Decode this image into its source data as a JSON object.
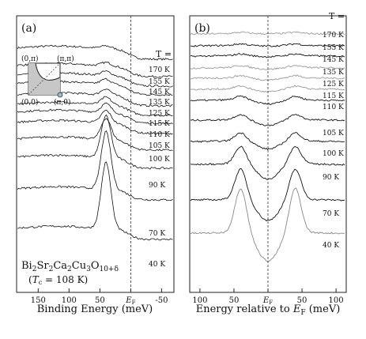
{
  "chart_data": [
    {
      "type": "line",
      "panel_label": "(a)",
      "xlabel": "Binding Energy (meV)",
      "x_ticks": [
        "150",
        "100",
        "50",
        "E_F",
        "-50"
      ],
      "x_tick_values": [
        150,
        100,
        50,
        0,
        -50
      ],
      "xlim": [
        185,
        -70
      ],
      "x_reversed": true,
      "temp_header": "T =",
      "fermi_line": "dashed vertical line at E_F",
      "series": [
        {
          "name": "170 K",
          "kind": "gap",
          "peak_x": 40,
          "peak_height": 0.12
        },
        {
          "name": "155 K",
          "kind": "gap",
          "peak_x": 40,
          "peak_height": 0.15
        },
        {
          "name": "145 K",
          "kind": "gap",
          "peak_x": 40,
          "peak_height": 0.18
        },
        {
          "name": "135 K",
          "kind": "gap",
          "peak_x": 40,
          "peak_height": 0.22
        },
        {
          "name": "125 K",
          "kind": "gap",
          "peak_x": 40,
          "peak_height": 0.28
        },
        {
          "name": "115 K",
          "kind": "gap",
          "peak_x": 40,
          "peak_height": 0.33
        },
        {
          "name": "110 K",
          "kind": "gap",
          "peak_x": 40,
          "peak_height": 0.4
        },
        {
          "name": "105 K",
          "kind": "gap",
          "peak_x": 40,
          "peak_height": 0.55
        },
        {
          "name": "100 K",
          "kind": "gap",
          "peak_x": 40,
          "peak_height": 0.95
        },
        {
          "name": "90 K",
          "kind": "gap",
          "peak_x": 40,
          "peak_height": 1.9
        },
        {
          "name": "70 K",
          "kind": "gap",
          "peak_x": 40,
          "peak_height": 2.6
        },
        {
          "name": "40 K",
          "kind": "gap",
          "peak_x": 40,
          "peak_height": 3.0
        }
      ],
      "inset": {
        "corner_labels": [
          "(0,π)",
          "(π,π)",
          "(0,0)",
          "(π,0)"
        ]
      },
      "annotation": {
        "formula_main": "Bi",
        "formula_parts": [
          {
            "t": "Bi",
            "sub": "2"
          },
          {
            "t": "Sr",
            "sub": "2"
          },
          {
            "t": "Ca",
            "sub": "2"
          },
          {
            "t": "Cu",
            "sub": "3"
          },
          {
            "t": "O",
            "sub": "10+δ"
          }
        ],
        "tc_symbol": "T",
        "tc_sub": "c",
        "tc_value": " = 108 K)",
        "tc_open": "("
      }
    },
    {
      "type": "line",
      "panel_label": "(b)",
      "xlabel": "Energy relative to E_F (meV)",
      "x_ticks": [
        "100",
        "50",
        "E_F",
        "50",
        "100"
      ],
      "x_tick_values": [
        -100,
        -50,
        0,
        50,
        100
      ],
      "xlim": [
        -115,
        115
      ],
      "temp_header": "T =",
      "fermi_line": "dashed vertical line at E_F",
      "series": [
        {
          "name": "170 K",
          "kind": "sym",
          "peak_x": 40,
          "peak_height": 0.05,
          "dip": 0.02,
          "color": "#9a9a9a"
        },
        {
          "name": "155 K",
          "kind": "sym",
          "peak_x": 40,
          "peak_height": 0.06,
          "dip": 0.04,
          "color": "#111111"
        },
        {
          "name": "145 K",
          "kind": "sym",
          "peak_x": 40,
          "peak_height": 0.07,
          "dip": 0.06,
          "color": "#111111"
        },
        {
          "name": "135 K",
          "kind": "sym",
          "peak_x": 40,
          "peak_height": 0.08,
          "dip": 0.08,
          "color": "#9a9a9a"
        },
        {
          "name": "125 K",
          "kind": "sym",
          "peak_x": 40,
          "peak_height": 0.09,
          "dip": 0.1,
          "color": "#9a9a9a"
        },
        {
          "name": "115 K",
          "kind": "sym",
          "peak_x": 40,
          "peak_height": 0.12,
          "dip": 0.14,
          "color": "#9a9a9a"
        },
        {
          "name": "110 K",
          "kind": "sym",
          "peak_x": 40,
          "peak_height": 0.15,
          "dip": 0.18,
          "color": "#111111"
        },
        {
          "name": "105 K",
          "kind": "sym",
          "peak_x": 40,
          "peak_height": 0.22,
          "dip": 0.25,
          "color": "#111111"
        },
        {
          "name": "100 K",
          "kind": "sym",
          "peak_x": 40,
          "peak_height": 0.35,
          "dip": 0.35,
          "color": "#111111"
        },
        {
          "name": "90 K",
          "kind": "sym",
          "peak_x": 40,
          "peak_height": 0.75,
          "dip": 0.65,
          "color": "#111111"
        },
        {
          "name": "70 K",
          "kind": "sym",
          "peak_x": 40,
          "peak_height": 1.3,
          "dip": 0.9,
          "color": "#111111"
        },
        {
          "name": "40 K",
          "kind": "sym",
          "peak_x": 40,
          "peak_height": 1.9,
          "dip": 1.2,
          "color": "#888888"
        }
      ]
    }
  ]
}
